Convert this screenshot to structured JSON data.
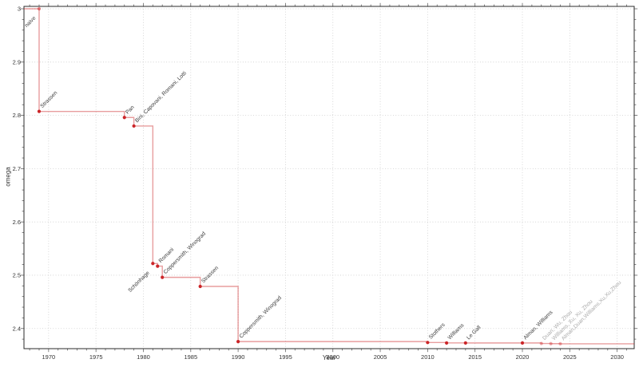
{
  "chart_data": {
    "type": "line",
    "subtype": "step-post",
    "title": "",
    "xlabel": "Year",
    "ylabel": "omega",
    "xlim": [
      1967.4,
      2031.8
    ],
    "ylim": [
      2.3622,
      3.0045
    ],
    "x_major_ticks": [
      1970,
      1975,
      1980,
      1985,
      1990,
      1995,
      2000,
      2005,
      2010,
      2015,
      2020,
      2025,
      2030
    ],
    "x_minor_step": 1,
    "y_major_ticks": [
      {
        "v": 2.4,
        "label": "2.4"
      },
      {
        "v": 2.5,
        "label": "2.5"
      },
      {
        "v": 2.6,
        "label": "2.6"
      },
      {
        "v": 2.7,
        "label": "2.7"
      },
      {
        "v": 2.8,
        "label": "2.8"
      },
      {
        "v": 2.9,
        "label": "2.9"
      },
      {
        "v": 3.0,
        "label": "3"
      }
    ],
    "y_minor_step": 0.02,
    "grid": "major-dotted",
    "legend": "none",
    "colors": {
      "marker": "#cb2528",
      "line": "#cb2528",
      "line_alpha": 0.45,
      "faded_alpha": 0.38,
      "label": "#3c3c3c",
      "faded_label": "#aaaaaa",
      "grid": "#c9c9c9",
      "spine": "#2b2b2b",
      "tick": "#666666",
      "tick_label": "#333333"
    },
    "points": [
      {
        "year": 1969,
        "omega": 3.0,
        "label": "naive",
        "label_anchor": "sw",
        "marker_style": "line-color"
      },
      {
        "year": 1969,
        "omega": 2.8074,
        "label": "Strassen"
      },
      {
        "year": 1978,
        "omega": 2.796,
        "label": "Pan"
      },
      {
        "year": 1979,
        "omega": 2.78,
        "label": "Bini, Capovani, Romani, Lotti"
      },
      {
        "year": 1981,
        "omega": 2.522,
        "label": "Schönhage",
        "label_anchor": "sw"
      },
      {
        "year": 1981.5,
        "omega": 2.517,
        "label": "Romani"
      },
      {
        "year": 1982,
        "omega": 2.496,
        "label": "Coppersmith, Winograd"
      },
      {
        "year": 1986,
        "omega": 2.479,
        "label": "Strassen"
      },
      {
        "year": 1990,
        "omega": 2.3755,
        "label": "Coppersmith, Winograd"
      },
      {
        "year": 2010,
        "omega": 2.3737,
        "label": "Stothers"
      },
      {
        "year": 2012,
        "omega": 2.3729,
        "label": "Williams"
      },
      {
        "year": 2014,
        "omega": 2.3728639,
        "label": "Le Gall"
      },
      {
        "year": 2020,
        "omega": 2.3728596,
        "label": "Alman, Williams"
      },
      {
        "year": 2022,
        "omega": 2.371866,
        "label": "Duan, Wu, Zhou",
        "faded": true
      },
      {
        "year": 2023,
        "omega": 2.371552,
        "label": "Williams, Xu, Xu, Zhou",
        "faded": true
      },
      {
        "year": 2024,
        "omega": 2.371339,
        "label": "Alman,Duan,Williams,Xu,Xu,Zhou",
        "faded": true
      }
    ]
  }
}
